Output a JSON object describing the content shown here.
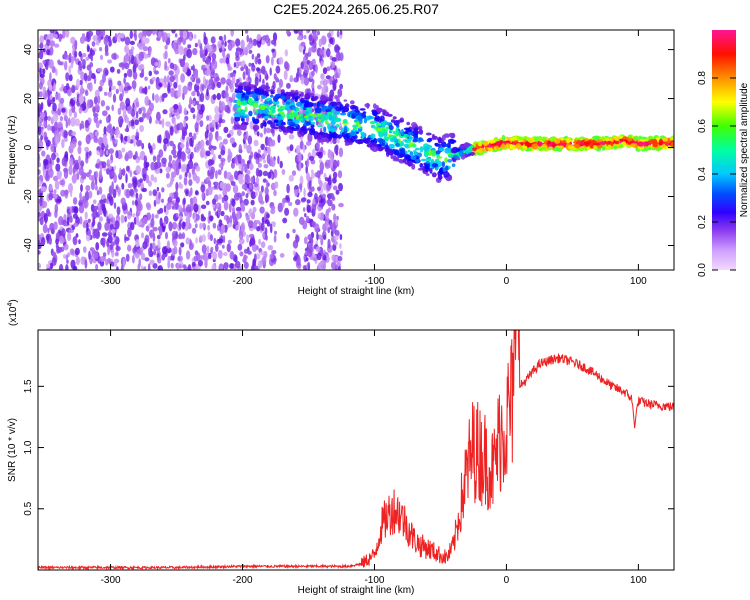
{
  "figure": {
    "title": "C2E5.2024.265.06.25.R07"
  },
  "chart_data": [
    {
      "type": "heatmap",
      "name": "spectrogram",
      "xlabel": "Height of straight line (km)",
      "ylabel": "Frequency (Hz)",
      "xlim": [
        -355,
        127
      ],
      "ylim": [
        -50,
        48
      ],
      "xticks": [
        -300,
        -200,
        -100,
        0,
        100
      ],
      "yticks": [
        -40,
        -20,
        0,
        20,
        40
      ],
      "ridge": {
        "description_x": [
          -200,
          -180,
          -160,
          -140,
          -120,
          -100,
          -80,
          -60,
          -50,
          -40,
          -30,
          -20,
          -10,
          0,
          20,
          40,
          60,
          80,
          90,
          100,
          127
        ],
        "frequency_hz": [
          17,
          16,
          14,
          12,
          10,
          8,
          3,
          -2,
          -5,
          -3,
          -1,
          0,
          1,
          2,
          1.5,
          1.5,
          1.5,
          2,
          3,
          1.5,
          2
        ]
      },
      "colorbar": {
        "label": "Normalized spectral amplitude",
        "range": [
          0,
          1
        ],
        "ticks": [
          0.0,
          0.2,
          0.4,
          0.6,
          0.8
        ],
        "tick_labels": [
          "0.0",
          "0.2",
          "0.4",
          "0.6",
          "0.8"
        ],
        "colors": [
          "#f2d9ff",
          "#b070f0",
          "#6010e0",
          "#0000ff",
          "#00c8ff",
          "#00ff80",
          "#80ff00",
          "#ffff00",
          "#ff8000",
          "#ff0000",
          "#ff1493"
        ]
      }
    },
    {
      "type": "line",
      "name": "snr",
      "xlabel": "Height of straight line (km)",
      "ylabel": "SNR (10 * v/v)",
      "scale_label": "(x10",
      "scale_exp": "4",
      "scale_close": ")",
      "xlim": [
        -355,
        127
      ],
      "ylim": [
        0,
        1.96
      ],
      "xticks": [
        -300,
        -200,
        -100,
        0,
        100
      ],
      "yticks": [
        0.5,
        1.0,
        1.5
      ],
      "ytick_labels": [
        "0.5",
        "1.0",
        "1.5"
      ],
      "color": "#ee2222",
      "series": [
        {
          "name": "SNR",
          "x": [
            -355,
            -300,
            -250,
            -200,
            -160,
            -140,
            -120,
            -110,
            -100,
            -95,
            -90,
            -85,
            -80,
            -75,
            -70,
            -65,
            -60,
            -55,
            -50,
            -45,
            -40,
            -35,
            -30,
            -25,
            -20,
            -15,
            -10,
            -5,
            0,
            5,
            8,
            10,
            15,
            20,
            25,
            30,
            35,
            40,
            50,
            60,
            70,
            80,
            90,
            95,
            97,
            100,
            110,
            120,
            127
          ],
          "y": [
            0.02,
            0.02,
            0.02,
            0.03,
            0.03,
            0.03,
            0.03,
            0.05,
            0.12,
            0.35,
            0.45,
            0.5,
            0.45,
            0.35,
            0.25,
            0.2,
            0.18,
            0.15,
            0.12,
            0.1,
            0.2,
            0.5,
            0.8,
            1.0,
            0.95,
            0.9,
            0.8,
            1.1,
            1.2,
            1.4,
            1.75,
            1.5,
            1.55,
            1.62,
            1.68,
            1.7,
            1.72,
            1.73,
            1.7,
            1.65,
            1.58,
            1.5,
            1.45,
            1.4,
            1.18,
            1.38,
            1.35,
            1.34,
            1.33
          ]
        }
      ]
    }
  ]
}
